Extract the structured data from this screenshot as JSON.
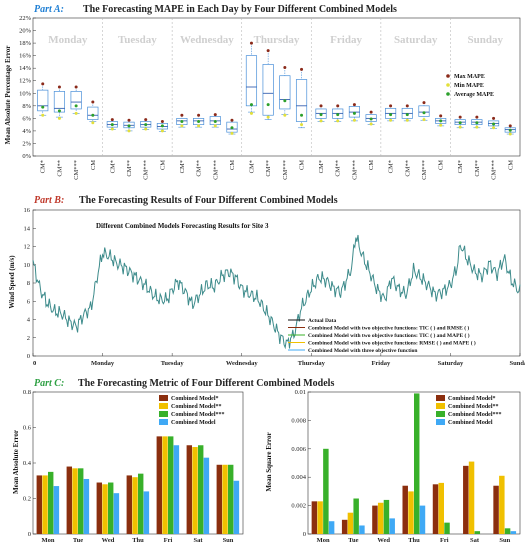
{
  "colors": {
    "partA": "#1f7fd4",
    "partB": "#c0392b",
    "partC": "#2ea043",
    "box": "#4a90d9",
    "median": "#1f4fa8",
    "max": "#8b2a1a",
    "min": "#e3e03a",
    "avg": "#2ca02c",
    "bar1": "#8b2e0e",
    "bar2": "#f0c000",
    "bar3": "#38b02a",
    "bar4": "#3fa9f5",
    "line": "#3d8b8b"
  },
  "chart_data": [
    {
      "type": "box",
      "part_label": "Part A:",
      "title": "The Forecasting MAPE in Each Day by Four Different Combined Models",
      "ylabel": "Mean Absolute Percentage Error",
      "ylim": [
        0,
        22
      ],
      "yticks": [
        "0%",
        "2%",
        "4%",
        "6%",
        "8%",
        "10%",
        "12%",
        "14%",
        "16%",
        "18%",
        "20%",
        "22%"
      ],
      "days": [
        "Monday",
        "Tuesday",
        "Wednesday",
        "Thursday",
        "Friday",
        "Saturday",
        "Sunday"
      ],
      "categories": [
        "CM*",
        "CM**",
        "CM***",
        "CM"
      ],
      "legend": [
        "Max MAPE",
        "Min MAPE",
        "Average MAPE"
      ],
      "boxes": [
        [
          [
            6.5,
            7.2,
            8.0,
            10.5,
            11.5,
            6.5,
            7.8
          ],
          [
            6.2,
            7.0,
            7.6,
            10.3,
            11.0,
            6.0,
            7.2
          ],
          [
            6.8,
            7.5,
            8.6,
            10.3,
            11.0,
            6.8,
            8.0
          ],
          [
            5.5,
            5.8,
            6.5,
            7.8,
            8.6,
            5.3,
            6.5
          ]
        ],
        [
          [
            4.2,
            4.6,
            5.0,
            5.5,
            5.8,
            4.3,
            5.0
          ],
          [
            4.0,
            4.5,
            4.9,
            5.4,
            5.7,
            4.0,
            4.8
          ],
          [
            4.2,
            4.6,
            5.0,
            5.5,
            5.8,
            4.3,
            5.0
          ],
          [
            3.9,
            4.3,
            4.7,
            5.2,
            5.5,
            4.0,
            4.8
          ]
        ],
        [
          [
            4.6,
            5.0,
            5.6,
            6.0,
            6.5,
            4.8,
            5.5
          ],
          [
            4.6,
            5.0,
            5.6,
            6.0,
            6.5,
            4.8,
            5.5
          ],
          [
            4.6,
            5.0,
            5.6,
            6.3,
            6.6,
            4.8,
            5.5
          ],
          [
            3.5,
            3.8,
            4.3,
            5.4,
            5.7,
            3.6,
            4.5
          ]
        ],
        [
          [
            7.0,
            8.0,
            11.0,
            16.0,
            18.0,
            6.8,
            8.2
          ],
          [
            5.8,
            6.5,
            10.0,
            14.6,
            16.8,
            6.2,
            8.2
          ],
          [
            6.6,
            7.5,
            9.0,
            12.8,
            14.1,
            6.5,
            8.8
          ],
          [
            4.5,
            5.5,
            8.0,
            12.2,
            13.8,
            5.0,
            6.5
          ]
        ],
        [
          [
            5.5,
            6.0,
            6.8,
            7.5,
            8.0,
            5.6,
            6.6
          ],
          [
            5.5,
            6.0,
            6.8,
            7.5,
            8.0,
            5.6,
            6.6
          ],
          [
            5.6,
            6.2,
            7.0,
            7.9,
            8.2,
            5.7,
            6.8
          ],
          [
            5.0,
            5.5,
            6.0,
            6.6,
            7.0,
            5.1,
            5.9
          ]
        ],
        [
          [
            5.6,
            6.0,
            6.8,
            7.6,
            8.0,
            5.7,
            6.6
          ],
          [
            5.6,
            6.0,
            6.8,
            7.6,
            8.0,
            5.7,
            6.6
          ],
          [
            5.7,
            6.3,
            7.0,
            8.0,
            8.5,
            5.8,
            6.9
          ],
          [
            4.8,
            5.2,
            5.6,
            6.0,
            6.4,
            4.9,
            5.6
          ]
        ],
        [
          [
            4.5,
            5.0,
            5.4,
            5.8,
            6.2,
            4.6,
            5.3
          ],
          [
            4.5,
            5.0,
            5.4,
            5.8,
            6.2,
            4.6,
            5.3
          ],
          [
            4.4,
            4.8,
            5.2,
            5.6,
            6.0,
            4.5,
            5.1
          ],
          [
            3.5,
            3.8,
            4.2,
            4.5,
            4.8,
            3.5,
            4.1
          ]
        ]
      ]
    },
    {
      "type": "line",
      "part_label": "Part B:",
      "title": "The Forecasting Results of Four Different Combined Models",
      "subtitle": "Different Combined Models Forecasting Results for Site 3",
      "ylabel": "Wind Speed (m/s)",
      "ylim": [
        0,
        16
      ],
      "yticks": [
        "0",
        "2",
        "4",
        "6",
        "8",
        "10",
        "12",
        "14",
        "16"
      ],
      "xlim": [
        0,
        672
      ],
      "xticks": [
        "0",
        "Monday",
        "Tuesday",
        "Wednesday",
        "Thursday",
        "Friday",
        "Saturday",
        "Sunday"
      ],
      "legend": [
        "Actual Data",
        "Combined Model with two objective functions: TIC ( ) and RMSE ( )",
        "Combined Model with two objective functions: TIC ( ) and MAPE ( )",
        "Combined Model with two objective functions: RMSE ( ) and MAPE ( )",
        "Combined Model with three objective function"
      ],
      "keypoints": [
        [
          0,
          10.2
        ],
        [
          10,
          7.5
        ],
        [
          20,
          6.0
        ],
        [
          30,
          5.0
        ],
        [
          40,
          4.5
        ],
        [
          50,
          3.5
        ],
        [
          60,
          3.0
        ],
        [
          70,
          4.5
        ],
        [
          80,
          5.5
        ],
        [
          90,
          9.5
        ],
        [
          96,
          11.5
        ],
        [
          105,
          11.0
        ],
        [
          115,
          10.0
        ],
        [
          125,
          9.5
        ],
        [
          135,
          9.0
        ],
        [
          145,
          8.5
        ],
        [
          155,
          8.0
        ],
        [
          165,
          7.0
        ],
        [
          175,
          6.2
        ],
        [
          185,
          6.0
        ],
        [
          192,
          7.0
        ],
        [
          200,
          8.0
        ],
        [
          210,
          7.0
        ],
        [
          220,
          5.8
        ],
        [
          230,
          7.0
        ],
        [
          240,
          8.0
        ],
        [
          250,
          7.5
        ],
        [
          260,
          8.5
        ],
        [
          270,
          9.0
        ],
        [
          280,
          8.5
        ],
        [
          288,
          7.5
        ],
        [
          300,
          7.0
        ],
        [
          310,
          6.5
        ],
        [
          320,
          5.0
        ],
        [
          330,
          3.5
        ],
        [
          340,
          2.0
        ],
        [
          350,
          1.2
        ],
        [
          360,
          2.5
        ],
        [
          370,
          5.5
        ],
        [
          384,
          7.5
        ],
        [
          395,
          8.5
        ],
        [
          405,
          8.0
        ],
        [
          415,
          7.2
        ],
        [
          425,
          7.0
        ],
        [
          440,
          10.0
        ],
        [
          445,
          13.5
        ],
        [
          455,
          11.0
        ],
        [
          465,
          9.0
        ],
        [
          475,
          7.0
        ],
        [
          485,
          6.0
        ],
        [
          495,
          8.5
        ],
        [
          505,
          7.5
        ],
        [
          515,
          7.0
        ],
        [
          525,
          9.5
        ],
        [
          535,
          8.5
        ],
        [
          545,
          7.5
        ],
        [
          555,
          6.5
        ],
        [
          565,
          7.0
        ],
        [
          576,
          8.0
        ],
        [
          585,
          10.0
        ],
        [
          590,
          12.5
        ],
        [
          600,
          10.5
        ],
        [
          610,
          9.0
        ],
        [
          620,
          8.5
        ],
        [
          630,
          10.0
        ],
        [
          640,
          9.0
        ],
        [
          650,
          11.0
        ],
        [
          660,
          8.5
        ],
        [
          672,
          7.0
        ]
      ]
    },
    {
      "type": "bar",
      "part_label": "Part C:",
      "title": "The Forecasting Metric of Four Different Combined Models",
      "ylabel": "Mean Absolute Error",
      "ylim": [
        0,
        0.8
      ],
      "yticks": [
        "0",
        "0.2",
        "0.4",
        "0.6",
        "0.8"
      ],
      "categories": [
        "Mon",
        "Tue",
        "Wed",
        "Thu",
        "Fri",
        "Sat",
        "Sun"
      ],
      "series": [
        {
          "name": "Combined Model*",
          "values": [
            0.33,
            0.38,
            0.29,
            0.33,
            0.55,
            0.5,
            0.39
          ]
        },
        {
          "name": "Combined Model**",
          "values": [
            0.33,
            0.37,
            0.28,
            0.32,
            0.55,
            0.49,
            0.39
          ]
        },
        {
          "name": "Combined Model***",
          "values": [
            0.35,
            0.37,
            0.29,
            0.34,
            0.55,
            0.5,
            0.39
          ]
        },
        {
          "name": "Combined Model",
          "values": [
            0.27,
            0.31,
            0.23,
            0.24,
            0.5,
            0.43,
            0.3
          ]
        }
      ]
    },
    {
      "type": "bar",
      "ylabel": "Mean Square Error",
      "ylim": [
        0,
        0.01
      ],
      "yticks": [
        "0",
        "0.002",
        "0.004",
        "0.006",
        "0.008",
        "0.01"
      ],
      "categories": [
        "Mon",
        "Tue",
        "Wed",
        "Thu",
        "Fri",
        "Sat",
        "Sun"
      ],
      "series": [
        {
          "name": "Combined Model*",
          "values": [
            0.0023,
            0.001,
            0.002,
            0.0034,
            0.0035,
            0.0048,
            0.0034
          ]
        },
        {
          "name": "Combined Model**",
          "values": [
            0.0023,
            0.0015,
            0.0022,
            0.003,
            0.0036,
            0.0051,
            0.0041
          ]
        },
        {
          "name": "Combined Model***",
          "values": [
            0.006,
            0.0025,
            0.0024,
            0.0099,
            0.0008,
            0.0002,
            0.0004
          ]
        },
        {
          "name": "Combined Model",
          "values": [
            0.0009,
            0.0006,
            0.0011,
            0.002,
            0.0,
            0.0,
            0.0002
          ]
        }
      ]
    }
  ]
}
